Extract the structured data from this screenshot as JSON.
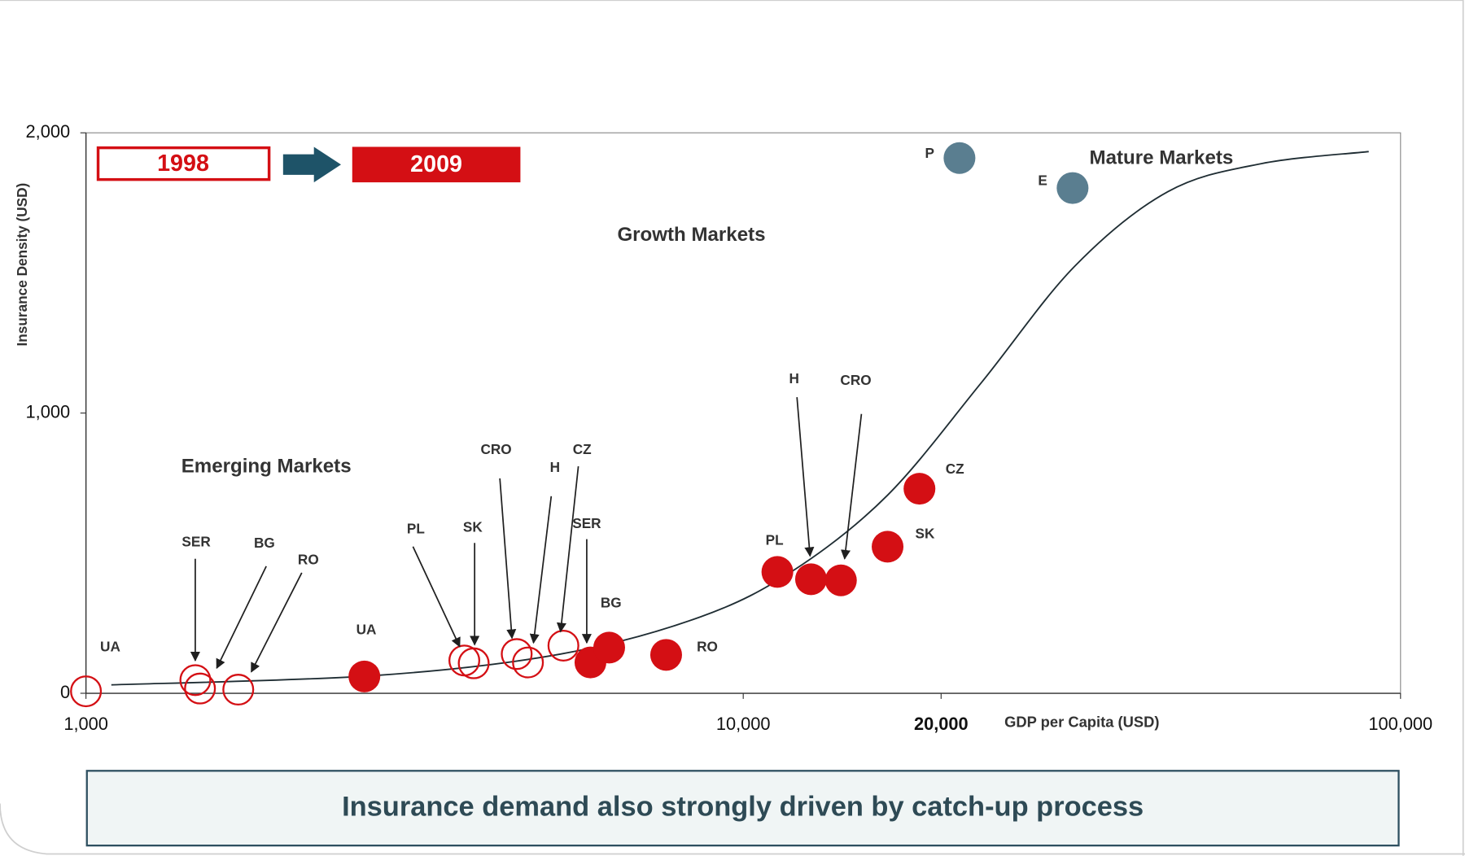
{
  "chart_data": {
    "type": "scatter",
    "xlabel": "GDP per Capita (USD)",
    "ylabel": "Insurance Density (USD)",
    "xlog": true,
    "xlim": [
      1000,
      100000
    ],
    "xticks": [
      {
        "value": 1000,
        "label": "1,000"
      },
      {
        "value": 10000,
        "label": "10,000"
      },
      {
        "value": 20000,
        "label": "20,000"
      },
      {
        "value": 100000,
        "label": "100,000"
      }
    ],
    "ylim": [
      0,
      2000
    ],
    "yticks": [
      0,
      {
        "value": 1000,
        "label": "1,000"
      },
      {
        "value": 2000,
        "label": "2,000"
      }
    ],
    "annotations": [
      "Emerging Markets",
      "Growth Markets",
      "Mature Markets"
    ],
    "series": [
      {
        "name": "1998",
        "color": "#d40f14",
        "filled": false,
        "labels": [
          "UA",
          "SER",
          "BG",
          "RO",
          "PL",
          "SK",
          "CRO",
          "H",
          "CZ"
        ],
        "x": [
          1000,
          1467,
          1491,
          1705,
          3764,
          3890,
          4522,
          4704,
          5326
        ],
        "values": [
          7,
          47,
          17,
          13,
          117,
          107,
          140,
          110,
          170
        ]
      },
      {
        "name": "2009",
        "color": "#d40f14",
        "filled": true,
        "labels": [
          "UA",
          "SER",
          "BG",
          "RO",
          "PL",
          "H",
          "CRO",
          "SK",
          "CZ"
        ],
        "x": [
          2652,
          5855,
          6252,
          7633,
          11270,
          12680,
          14080,
          16580,
          18540
        ],
        "values": [
          60,
          110,
          163,
          137,
          433,
          407,
          403,
          523,
          730
        ]
      },
      {
        "color": "#5a7e90",
        "filled": true,
        "labels": [
          "P",
          "E"
        ],
        "x": [
          21330,
          31700
        ],
        "values": [
          1910,
          1803
        ]
      }
    ],
    "trend": {
      "color": "#1f2d33",
      "x": [
        1093,
        2740,
        5274,
        8616,
        11950,
        16580,
        23000,
        31910,
        44260,
        61410,
        89460
      ],
      "values": [
        30,
        63,
        140,
        273,
        440,
        707,
        1107,
        1523,
        1790,
        1890,
        1933
      ]
    }
  },
  "footer": "Insurance demand also strongly driven by catch-up process"
}
